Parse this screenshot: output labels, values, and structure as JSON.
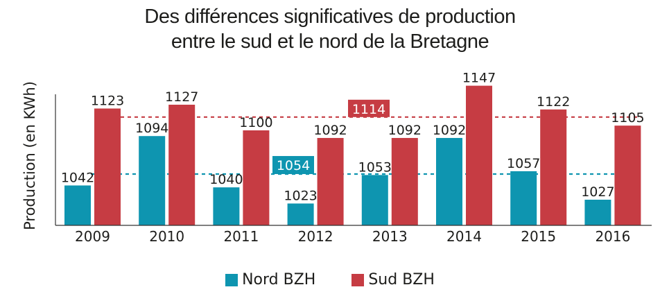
{
  "chart_data": {
    "type": "bar",
    "title": "Des différences significatives de production",
    "title_line2": "entre le sud et le nord de la Bretagne",
    "xlabel": "",
    "ylabel": "Production (en KWh)",
    "ylim": [
      1000,
      1150
    ],
    "grid": false,
    "categories": [
      "2009",
      "2010",
      "2011",
      "2012",
      "2013",
      "2014",
      "2015",
      "2016"
    ],
    "series": [
      {
        "name": "Nord BZH",
        "color": "#0e95b0",
        "values": [
          1042,
          1094,
          1040,
          1023,
          1053,
          1092,
          1057,
          1027
        ]
      },
      {
        "name": "Sud BZH",
        "color": "#c63c43",
        "values": [
          1123,
          1127,
          1100,
          1092,
          1092,
          1147,
          1122,
          1105
        ]
      }
    ],
    "averages": [
      {
        "series": "Nord BZH",
        "value": 1054,
        "label": "1054",
        "color": "#0e95b0"
      },
      {
        "series": "Sud BZH",
        "value": 1114,
        "label": "1114",
        "color": "#c63c43"
      }
    ],
    "legend_position": "bottom-center"
  }
}
